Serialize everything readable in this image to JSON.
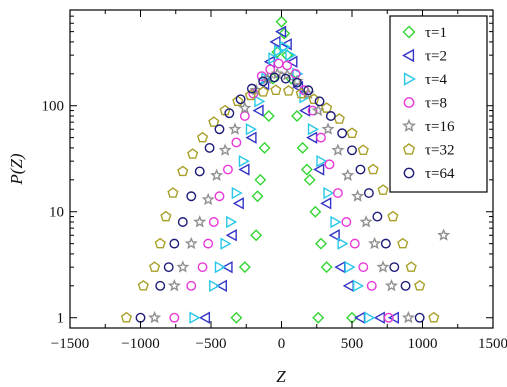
{
  "chart_data": {
    "type": "scatter",
    "title": "",
    "xlabel": "Z",
    "ylabel": "P(Z)",
    "xlim": [
      -1500,
      1500
    ],
    "ylim": [
      0.8,
      800
    ],
    "xscale": "linear",
    "yscale": "log",
    "xticks": [
      -1500,
      -1000,
      -500,
      0,
      500,
      1000,
      1500
    ],
    "xtick_labels": [
      "−1500",
      "−1000",
      "−500",
      "0",
      "500",
      "1000",
      "1500"
    ],
    "yticks": [
      1,
      10,
      100
    ],
    "ytick_labels": [
      "1",
      "10",
      "100"
    ],
    "grid": false,
    "legend_position": "top-right",
    "series": [
      {
        "name": "τ=1",
        "marker": "diamond",
        "color": "#34d534",
        "peak": 620,
        "pos": [
          -250,
          -200,
          -150,
          -100,
          -50,
          0,
          50,
          100,
          150,
          200,
          250,
          300,
          350,
          400
        ],
        "points": [
          [
            -320,
            1
          ],
          [
            -260,
            3
          ],
          [
            -180,
            6
          ],
          [
            -170,
            14
          ],
          [
            -150,
            20
          ],
          [
            -120,
            40
          ],
          [
            -90,
            80
          ],
          [
            -60,
            180
          ],
          [
            -30,
            320
          ],
          [
            0,
            620
          ],
          [
            20,
            480
          ],
          [
            40,
            300
          ],
          [
            70,
            180
          ],
          [
            110,
            80
          ],
          [
            150,
            40
          ],
          [
            180,
            25
          ],
          [
            200,
            20
          ],
          [
            240,
            10
          ],
          [
            280,
            5
          ],
          [
            320,
            3
          ],
          [
            260,
            1
          ],
          [
            500,
            1
          ]
        ]
      },
      {
        "name": "τ=2",
        "marker": "triangle-left",
        "color": "#3434c8",
        "points": [
          [
            -540,
            1
          ],
          [
            -420,
            2
          ],
          [
            -380,
            3
          ],
          [
            -350,
            6
          ],
          [
            -300,
            12
          ],
          [
            -260,
            25
          ],
          [
            -210,
            50
          ],
          [
            -160,
            90
          ],
          [
            -120,
            160
          ],
          [
            -80,
            260
          ],
          [
            -40,
            400
          ],
          [
            0,
            500
          ],
          [
            40,
            380
          ],
          [
            80,
            260
          ],
          [
            120,
            150
          ],
          [
            170,
            90
          ],
          [
            220,
            50
          ],
          [
            270,
            25
          ],
          [
            320,
            12
          ],
          [
            380,
            6
          ],
          [
            420,
            3
          ],
          [
            480,
            2
          ],
          [
            560,
            1
          ],
          [
            700,
            1
          ],
          [
            800,
            1
          ]
        ]
      },
      {
        "name": "τ=4",
        "marker": "triangle-right",
        "color": "#28c8e8",
        "points": [
          [
            -620,
            1
          ],
          [
            -480,
            2
          ],
          [
            -440,
            3
          ],
          [
            -400,
            5
          ],
          [
            -360,
            8
          ],
          [
            -320,
            15
          ],
          [
            -270,
            30
          ],
          [
            -220,
            60
          ],
          [
            -160,
            110
          ],
          [
            -110,
            180
          ],
          [
            -60,
            280
          ],
          [
            -20,
            330
          ],
          [
            20,
            360
          ],
          [
            60,
            300
          ],
          [
            110,
            200
          ],
          [
            160,
            120
          ],
          [
            220,
            60
          ],
          [
            280,
            30
          ],
          [
            330,
            15
          ],
          [
            380,
            8
          ],
          [
            430,
            5
          ],
          [
            480,
            3
          ],
          [
            540,
            2
          ],
          [
            620,
            1
          ]
        ]
      },
      {
        "name": "τ=8",
        "marker": "circle",
        "color": "#e838d8",
        "points": [
          [
            -760,
            1
          ],
          [
            -640,
            2
          ],
          [
            -560,
            3
          ],
          [
            -520,
            5
          ],
          [
            -480,
            8
          ],
          [
            -440,
            14
          ],
          [
            -380,
            25
          ],
          [
            -320,
            45
          ],
          [
            -260,
            80
          ],
          [
            -200,
            130
          ],
          [
            -140,
            190
          ],
          [
            -80,
            220
          ],
          [
            -20,
            250
          ],
          [
            40,
            240
          ],
          [
            100,
            200
          ],
          [
            160,
            140
          ],
          [
            220,
            90
          ],
          [
            280,
            50
          ],
          [
            340,
            28
          ],
          [
            400,
            15
          ],
          [
            460,
            8
          ],
          [
            520,
            5
          ],
          [
            580,
            3
          ],
          [
            640,
            2
          ],
          [
            760,
            1
          ]
        ]
      },
      {
        "name": "τ=16",
        "marker": "star",
        "color": "#909090",
        "points": [
          [
            -900,
            1
          ],
          [
            -760,
            2
          ],
          [
            -700,
            3
          ],
          [
            -640,
            5
          ],
          [
            -580,
            8
          ],
          [
            -520,
            13
          ],
          [
            -460,
            22
          ],
          [
            -400,
            38
          ],
          [
            -330,
            60
          ],
          [
            -260,
            95
          ],
          [
            -180,
            140
          ],
          [
            -100,
            180
          ],
          [
            -30,
            200
          ],
          [
            40,
            195
          ],
          [
            110,
            170
          ],
          [
            190,
            130
          ],
          [
            260,
            90
          ],
          [
            330,
            60
          ],
          [
            400,
            38
          ],
          [
            470,
            22
          ],
          [
            540,
            14
          ],
          [
            600,
            8
          ],
          [
            660,
            5
          ],
          [
            720,
            3
          ],
          [
            780,
            2
          ],
          [
            900,
            1
          ],
          [
            1150,
            6
          ]
        ]
      },
      {
        "name": "τ=32",
        "marker": "pentagon",
        "color": "#a8a028",
        "points": [
          [
            -1100,
            1
          ],
          [
            -980,
            2
          ],
          [
            -900,
            3
          ],
          [
            -860,
            5
          ],
          [
            -820,
            9
          ],
          [
            -770,
            15
          ],
          [
            -700,
            24
          ],
          [
            -630,
            35
          ],
          [
            -560,
            50
          ],
          [
            -480,
            70
          ],
          [
            -400,
            90
          ],
          [
            -310,
            110
          ],
          [
            -220,
            125
          ],
          [
            -130,
            135
          ],
          [
            -40,
            140
          ],
          [
            50,
            138
          ],
          [
            140,
            130
          ],
          [
            230,
            115
          ],
          [
            320,
            95
          ],
          [
            410,
            75
          ],
          [
            500,
            55
          ],
          [
            580,
            38
          ],
          [
            650,
            25
          ],
          [
            720,
            16
          ],
          [
            790,
            9
          ],
          [
            860,
            5
          ],
          [
            920,
            3
          ],
          [
            980,
            2
          ],
          [
            1080,
            1
          ]
        ]
      },
      {
        "name": "τ=64",
        "marker": "circle",
        "color": "#1c1c78",
        "points": [
          [
            -1000,
            1
          ],
          [
            -860,
            2
          ],
          [
            -800,
            3
          ],
          [
            -760,
            5
          ],
          [
            -700,
            8
          ],
          [
            -640,
            14
          ],
          [
            -580,
            24
          ],
          [
            -510,
            40
          ],
          [
            -440,
            60
          ],
          [
            -370,
            85
          ],
          [
            -290,
            115
          ],
          [
            -210,
            145
          ],
          [
            -130,
            170
          ],
          [
            -50,
            185
          ],
          [
            30,
            180
          ],
          [
            110,
            165
          ],
          [
            190,
            140
          ],
          [
            270,
            110
          ],
          [
            350,
            80
          ],
          [
            430,
            55
          ],
          [
            500,
            38
          ],
          [
            560,
            25
          ],
          [
            620,
            15
          ],
          [
            680,
            9
          ],
          [
            740,
            5
          ],
          [
            800,
            3
          ],
          [
            880,
            2
          ],
          [
            980,
            1
          ]
        ]
      }
    ]
  }
}
